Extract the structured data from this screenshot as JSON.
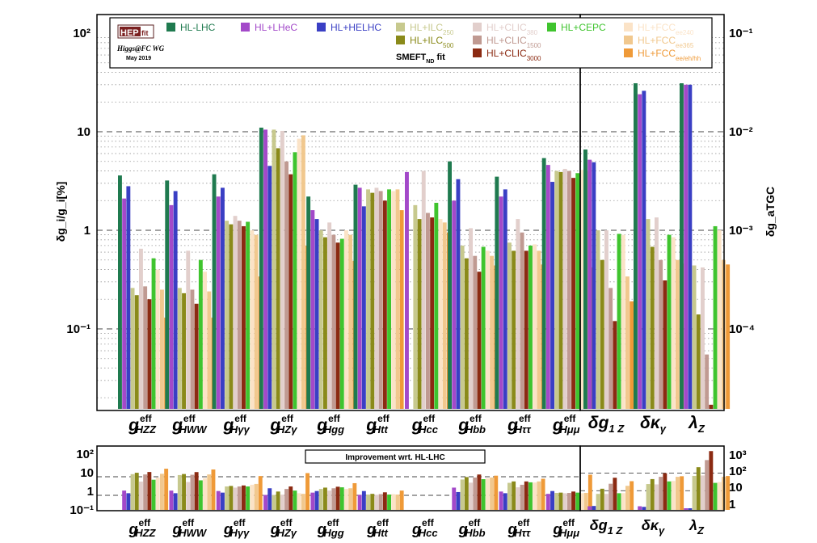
{
  "chart_data": {
    "type": "bar",
    "log_scale": true,
    "y_left_label": "δg_i/g_i[%]",
    "y_right_label": "δg_aTGC",
    "ylim": [
      0.015,
      150
    ],
    "y_ticks": [
      "10²",
      "10",
      "1",
      "10⁻¹"
    ],
    "y_right_ticks": [
      "10⁻¹",
      "10⁻²",
      "10⁻³",
      "10⁻⁴"
    ],
    "subtitle": "SMEFT_ND fit",
    "logo": {
      "text": "HEP",
      "suffix": "fit",
      "line1": "Higgs@FC WG",
      "line2": "May 2019"
    },
    "categories": [
      {
        "main": "g",
        "sup": "eff",
        "sub": "HZZ"
      },
      {
        "main": "g",
        "sup": "eff",
        "sub": "HWW"
      },
      {
        "main": "g",
        "sup": "eff",
        "sub": "Hγγ"
      },
      {
        "main": "g",
        "sup": "eff",
        "sub": "HZγ"
      },
      {
        "main": "g",
        "sup": "eff",
        "sub": "Hgg"
      },
      {
        "main": "g",
        "sup": "eff",
        "sub": "Htt"
      },
      {
        "main": "g",
        "sup": "eff",
        "sub": "Hcc"
      },
      {
        "main": "g",
        "sup": "eff",
        "sub": "Hbb"
      },
      {
        "main": "g",
        "sup": "eff",
        "sub": "Hττ"
      },
      {
        "main": "g",
        "sup": "eff",
        "sub": "Hμμ"
      }
    ],
    "atgc_categories": [
      {
        "main": "δg",
        "sub": "1 Z"
      },
      {
        "main": "δκ",
        "sub": "γ"
      },
      {
        "main": "λ",
        "sub": "Z"
      }
    ],
    "series": [
      {
        "name": "HL-LHC",
        "sub": "",
        "color": "#1f7a4f",
        "values": [
          3.6,
          3.2,
          3.7,
          11,
          2.2,
          2.9,
          null,
          5.0,
          3.5,
          5.4
        ],
        "atgc": [
          6.6,
          31,
          31
        ],
        "improvement": [
          null,
          null,
          null,
          null,
          null,
          null,
          null,
          null,
          null,
          null
        ],
        "improvement_atgc": [
          null,
          null,
          null
        ]
      },
      {
        "name": "HL+LHeC",
        "sub": "",
        "color": "#a349c9",
        "values": [
          2.1,
          1.8,
          2.2,
          10.5,
          1.6,
          2.7,
          3.9,
          2.0,
          2.2,
          4.6
        ],
        "atgc": [
          5.2,
          24,
          30
        ],
        "improvement": [
          1.8,
          1.8,
          1.7,
          1.05,
          1.4,
          1.07,
          null,
          2.6,
          1.6,
          1.2
        ],
        "improvement_atgc": [
          1.3,
          1.3,
          1.0
        ]
      },
      {
        "name": "HL+HELHC",
        "sub": "",
        "color": "#3a3fc4",
        "values": [
          2.8,
          2.5,
          2.7,
          4.5,
          1.3,
          1.75,
          null,
          3.3,
          2.6,
          3.1
        ],
        "atgc": [
          4.9,
          26,
          30
        ],
        "improvement": [
          1.3,
          1.3,
          1.4,
          2.4,
          1.7,
          1.7,
          null,
          1.5,
          1.3,
          1.7
        ],
        "improvement_atgc": [
          1.35,
          1.2,
          1.0
        ]
      },
      {
        "name": "HL+ILC",
        "sub": "250",
        "color": "#c7c98e",
        "values": [
          0.26,
          0.26,
          1.25,
          10.5,
          1.0,
          2.6,
          1.8,
          0.7,
          0.75,
          4.0
        ],
        "atgc": [
          1.0,
          1.3,
          0.44
        ],
        "improvement": [
          13.8,
          12.3,
          3.0,
          1.05,
          2.2,
          1.1,
          null,
          7.1,
          4.7,
          1.35
        ],
        "improvement_atgc": [
          6.6,
          24,
          70
        ]
      },
      {
        "name": "HL+ILC",
        "sub": "500",
        "color": "#8a8a1a",
        "values": [
          0.22,
          0.23,
          1.15,
          6.8,
          0.85,
          2.4,
          1.3,
          0.52,
          0.62,
          3.9
        ],
        "atgc": [
          0.5,
          0.68,
          0.14
        ],
        "improvement": [
          16.4,
          14,
          3.2,
          1.6,
          2.6,
          1.2,
          null,
          9.6,
          5.6,
          1.4
        ],
        "improvement_atgc": [
          13,
          46,
          220
        ]
      },
      {
        "name": "HL+CLIC",
        "sub": "380",
        "color": "#e2cfcc",
        "values": [
          0.65,
          0.62,
          1.4,
          10.2,
          1.2,
          2.7,
          4.0,
          1.05,
          1.3,
          4.2
        ],
        "atgc": [
          1.0,
          1.35,
          0.42
        ],
        "improvement": [
          5.5,
          5.2,
          2.6,
          1.08,
          1.8,
          1.07,
          null,
          4.8,
          2.7,
          1.3
        ],
        "improvement_atgc": [
          6.6,
          23,
          74
        ]
      },
      {
        "name": "HL+CLIC",
        "sub": "1500",
        "color": "#c09a92",
        "values": [
          0.27,
          0.25,
          1.25,
          5.0,
          0.9,
          2.5,
          1.5,
          0.55,
          0.95,
          4.0
        ],
        "atgc": [
          0.26,
          0.5,
          0.055
        ],
        "improvement": [
          13.3,
          12.8,
          3.0,
          2.2,
          2.4,
          1.16,
          null,
          9.1,
          3.7,
          1.35
        ],
        "improvement_atgc": [
          25,
          62,
          560
        ]
      },
      {
        "name": "HL+CLIC",
        "sub": "3000",
        "color": "#8b2a12",
        "values": [
          0.2,
          0.18,
          1.1,
          3.7,
          0.75,
          2.0,
          1.35,
          0.38,
          0.62,
          3.4
        ],
        "atgc": [
          0.12,
          0.31,
          0.017
        ],
        "improvement": [
          18,
          17.8,
          3.4,
          3.0,
          2.9,
          1.45,
          null,
          13.2,
          5.6,
          1.6
        ],
        "improvement_atgc": [
          55,
          100,
          1820
        ]
      },
      {
        "name": "HL+CEPC",
        "sub": "",
        "color": "#3fc42e",
        "values": [
          0.52,
          0.5,
          1.22,
          6.2,
          0.82,
          2.6,
          1.9,
          0.68,
          0.7,
          3.8
        ],
        "atgc": [
          0.92,
          0.9,
          1.1
        ],
        "improvement": [
          6.9,
          6.4,
          3.0,
          1.8,
          2.7,
          1.1,
          null,
          7.4,
          5.0,
          1.4
        ],
        "improvement_atgc": [
          7.2,
          34,
          28
        ]
      },
      {
        "name": "HL+FCC",
        "sub": "ee240",
        "color": "#fbe3c7",
        "values": [
          0.4,
          0.38,
          1.0,
          8.5,
          1.0,
          2.5,
          1.3,
          0.62,
          0.72,
          4.1
        ],
        "atgc": [
          0.9,
          0.85,
          1.0
        ],
        "improvement": [
          9.0,
          8.4,
          3.7,
          1.3,
          2.2,
          1.16,
          null,
          8.1,
          4.9,
          1.3
        ],
        "improvement_atgc": [
          7.3,
          36,
          31
        ]
      },
      {
        "name": "HL+FCC",
        "sub": "ee365",
        "color": "#f1c88e",
        "values": [
          0.25,
          0.24,
          0.9,
          9.2,
          0.9,
          2.6,
          1.2,
          0.55,
          0.62,
          4.0
        ],
        "atgc": [
          0.34,
          0.5,
          0.5
        ],
        "improvement": [
          14.4,
          13.3,
          4.1,
          1.2,
          2.4,
          1.1,
          null,
          9.1,
          5.6,
          1.35
        ],
        "improvement_atgc": [
          19,
          62,
          62
        ]
      },
      {
        "name": "HL+FCC",
        "sub": "ee/eh/hh",
        "color": "#ef9a38",
        "values": [
          0.13,
          0.13,
          0.34,
          0.7,
          0.49,
          1.6,
          0.95,
          0.44,
          0.45,
          0.42
        ],
        "atgc": [
          0.19,
          0.46,
          0.45
        ],
        "improvement": [
          27,
          24.6,
          10.9,
          15.7,
          4.5,
          1.8,
          null,
          11.4,
          7.8,
          12.9
        ],
        "improvement_atgc": [
          35,
          67,
          69
        ]
      }
    ],
    "improvement_panel": {
      "title": "Improvement wrt. HL-LHC",
      "y_ticks": [
        "10²",
        "10",
        "1",
        "10⁻¹"
      ],
      "y_right_ticks": [
        "10³",
        "10²",
        "10",
        "1"
      ]
    }
  }
}
